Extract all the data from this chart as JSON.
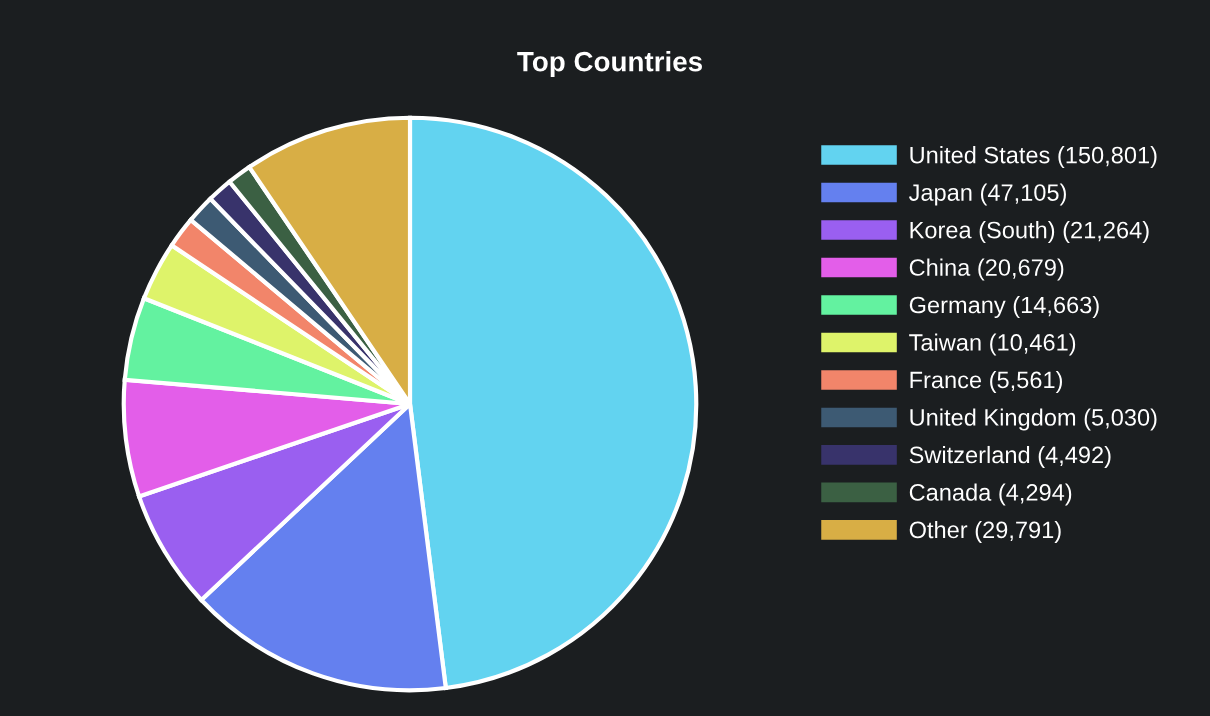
{
  "chart_data": {
    "type": "pie",
    "title": "Top Countries",
    "legend": "right",
    "categories": [
      "United States (150,801)",
      "Japan (47,105)",
      "Korea (South) (21,264)",
      "China (20,679)",
      "Germany (14,663)",
      "Taiwan (10,461)",
      "France (5,561)",
      "United Kingdom (5,030)",
      "Switzerland (4,492)",
      "Canada (4,294)",
      "Other (29,791)"
    ],
    "values": [
      150801,
      47105,
      21264,
      20679,
      14663,
      10461,
      5561,
      5030,
      4492,
      4294,
      29791
    ],
    "colors": [
      "#62d3f0",
      "#6480ef",
      "#9a5ff0",
      "#e35ee9",
      "#63f2a0",
      "#def36a",
      "#f2856a",
      "#3d5a73",
      "#38336b",
      "#3b6043",
      "#d8ae45"
    ]
  }
}
